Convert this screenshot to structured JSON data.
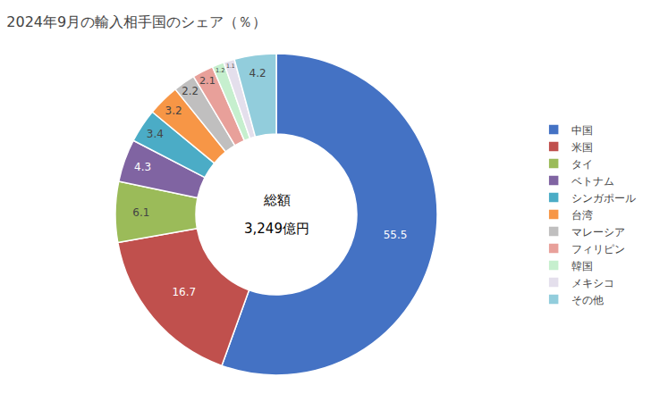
{
  "chart_data": {
    "type": "donut",
    "title": "2024年9月の輸入相手国のシェア（％）",
    "categories": [
      "中国",
      "米国",
      "タイ",
      "ベトナム",
      "シンガポール",
      "台湾",
      "マレーシア",
      "フィリピン",
      "韓国",
      "メキシコ",
      "その他"
    ],
    "values": [
      55.5,
      16.7,
      6.1,
      4.3,
      3.4,
      3.2,
      2.2,
      2.1,
      1.2,
      1.1,
      4.2
    ],
    "colors": [
      "#4472C4",
      "#C0504D",
      "#9BBB59",
      "#8064A2",
      "#4BACC6",
      "#F79646",
      "#C0BFBF",
      "#E8A09A",
      "#C6EFCE",
      "#E4DFEC",
      "#92CDDC"
    ],
    "data_labels": true,
    "annotations": [
      "総額",
      "3,249億円"
    ],
    "legend": "right"
  }
}
